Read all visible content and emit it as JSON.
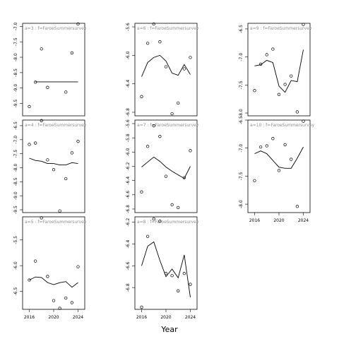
{
  "figure": {
    "xlabel": "Year"
  },
  "chart_data": [
    {
      "type": "scatter",
      "panel_label": "a=3 : f=FaroeSummersurvey",
      "ylim": [
        -9.9,
        -6.9
      ],
      "yticks": [
        -9.5,
        -9.0,
        -8.5,
        -8.0,
        -7.5,
        -7.0
      ],
      "ytick_labels": [
        "-9.5",
        "-9.0",
        "-8.5",
        "-8.0",
        "-7.5",
        "-7.0"
      ],
      "show_xaxis": false,
      "points": [
        [
          2016,
          -9.6
        ],
        [
          2017,
          -8.81
        ],
        [
          2018,
          -7.73
        ],
        [
          2019,
          -8.98
        ],
        [
          2022,
          -9.13
        ],
        [
          2023,
          -7.86
        ],
        [
          2024,
          -6.92
        ]
      ],
      "fit": [
        [
          2017,
          -8.8
        ],
        [
          2024,
          -8.8
        ]
      ]
    },
    {
      "type": "scatter",
      "panel_label": "a=6 : f=FaroeSummersurvey",
      "ylim": [
        -6.85,
        -5.55
      ],
      "yticks": [
        -6.8,
        -6.4,
        -6.0,
        -5.6
      ],
      "ytick_labels": [
        "-6.8",
        "-6.4",
        "-6.0",
        "-5.6"
      ],
      "show_xaxis": false,
      "points": [
        [
          2016,
          -6.58
        ],
        [
          2017,
          -5.83
        ],
        [
          2018,
          -5.56
        ],
        [
          2019,
          -5.81
        ],
        [
          2020,
          -6.16
        ],
        [
          2021,
          -6.82
        ],
        [
          2022,
          -6.67
        ],
        [
          2023,
          -6.19
        ],
        [
          2024,
          -6.03
        ]
      ],
      "fit": [
        [
          2016,
          -6.3
        ],
        [
          2017,
          -6.1
        ],
        [
          2018,
          -6.03
        ],
        [
          2019,
          -6.0
        ],
        [
          2020,
          -6.08
        ],
        [
          2021,
          -6.25
        ],
        [
          2022,
          -6.28
        ],
        [
          2023,
          -6.13
        ],
        [
          2024,
          -6.27
        ]
      ]
    },
    {
      "type": "scatter",
      "panel_label": "a=9 : f=FaroeSummersurvey",
      "ylim": [
        -8.05,
        -6.4
      ],
      "yticks": [
        -8.0,
        -7.5,
        -7.0,
        -6.5
      ],
      "ytick_labels": [
        "-8.0",
        "-7.5",
        "-7.0",
        "-6.5"
      ],
      "show_xaxis": false,
      "points": [
        [
          2016,
          -7.6
        ],
        [
          2017,
          -7.13
        ],
        [
          2018,
          -6.96
        ],
        [
          2019,
          -6.86
        ],
        [
          2020,
          -7.67
        ],
        [
          2021,
          -7.49
        ],
        [
          2022,
          -7.34
        ],
        [
          2023,
          -7.98
        ],
        [
          2024,
          -6.42
        ]
      ],
      "fit": [
        [
          2016,
          -7.16
        ],
        [
          2017,
          -7.14
        ],
        [
          2018,
          -7.06
        ],
        [
          2019,
          -7.1
        ],
        [
          2020,
          -7.52
        ],
        [
          2021,
          -7.63
        ],
        [
          2022,
          -7.42
        ],
        [
          2023,
          -7.44
        ],
        [
          2024,
          -6.87
        ]
      ]
    },
    {
      "type": "scatter",
      "panel_label": "a=4 : f=FaroeSummersurvey",
      "ylim": [
        -9.6,
        -6.3
      ],
      "yticks": [
        -9.5,
        -9.0,
        -8.5,
        -8.0,
        -7.5,
        -7.0,
        -6.5
      ],
      "ytick_labels": [
        "-9.5",
        "-9.0",
        "-8.5",
        "-8.0",
        "-7.5",
        "-7.0",
        "-6.5"
      ],
      "show_xaxis": false,
      "points": [
        [
          2016,
          -7.17
        ],
        [
          2017,
          -7.12
        ],
        [
          2018,
          -6.32
        ],
        [
          2019,
          -7.72
        ],
        [
          2020,
          -8.07
        ],
        [
          2021,
          -9.54
        ],
        [
          2022,
          -8.39
        ],
        [
          2023,
          -7.47
        ],
        [
          2024,
          -7.06
        ]
      ],
      "fit": [
        [
          2016,
          -7.66
        ],
        [
          2017,
          -7.74
        ],
        [
          2018,
          -7.77
        ],
        [
          2019,
          -7.85
        ],
        [
          2020,
          -7.85
        ],
        [
          2021,
          -7.9
        ],
        [
          2022,
          -7.9
        ],
        [
          2023,
          -7.82
        ],
        [
          2024,
          -7.85
        ]
      ]
    },
    {
      "type": "scatter",
      "panel_label": "a=7 : f=FaroeSummersurvey",
      "ylim": [
        -6.85,
        -5.55
      ],
      "yticks": [
        -6.8,
        -6.6,
        -6.4,
        -6.2,
        -6.0,
        -5.8,
        -5.6
      ],
      "ytick_labels": [
        "-6.8",
        "-6.6",
        "-6.4",
        "-6.2",
        "-6.0",
        "-5.8",
        "-5.6"
      ],
      "show_xaxis": false,
      "points": [
        [
          2016,
          -6.56
        ],
        [
          2017,
          -5.92
        ],
        [
          2018,
          -5.63
        ],
        [
          2019,
          -5.78
        ],
        [
          2020,
          -6.34
        ],
        [
          2021,
          -6.74
        ],
        [
          2022,
          -6.78
        ],
        [
          2023,
          -6.36
        ],
        [
          2024,
          -5.98
        ]
      ],
      "fit": [
        [
          2016,
          -6.21
        ],
        [
          2017,
          -6.14
        ],
        [
          2018,
          -6.07
        ],
        [
          2019,
          -6.13
        ],
        [
          2020,
          -6.21
        ],
        [
          2021,
          -6.27
        ],
        [
          2022,
          -6.32
        ],
        [
          2023,
          -6.37
        ],
        [
          2024,
          -6.2
        ]
      ]
    },
    {
      "type": "scatter",
      "panel_label": "a=10 : f=FaroeSummersurvey",
      "ylim": [
        -8.15,
        -6.5
      ],
      "yticks": [
        -8.0,
        -7.5,
        -7.0,
        -6.5
      ],
      "ytick_labels": [
        "-8.0",
        "-7.5",
        "-7.0",
        "-6.5"
      ],
      "show_xaxis": true,
      "points": [
        [
          2016,
          -7.58
        ],
        [
          2017,
          -6.98
        ],
        [
          2018,
          -6.96
        ],
        [
          2019,
          -6.83
        ],
        [
          2020,
          -7.4
        ],
        [
          2021,
          -6.94
        ],
        [
          2022,
          -7.2
        ],
        [
          2023,
          -8.04
        ],
        [
          2024,
          -6.52
        ]
      ],
      "fit": [
        [
          2016,
          -7.1
        ],
        [
          2017,
          -7.05
        ],
        [
          2018,
          -7.1
        ],
        [
          2019,
          -7.22
        ],
        [
          2020,
          -7.34
        ],
        [
          2021,
          -7.36
        ],
        [
          2022,
          -7.36
        ],
        [
          2023,
          -7.18
        ],
        [
          2024,
          -6.98
        ]
      ]
    },
    {
      "type": "scatter",
      "panel_label": "a=5 : f=FaroeSummersurvey",
      "ylim": [
        -6.85,
        -5.05
      ],
      "yticks": [
        -6.5,
        -6.0,
        -5.5
      ],
      "ytick_labels": [
        "-6.5",
        "-6.0",
        "-5.5"
      ],
      "show_xaxis": true,
      "points": [
        [
          2016,
          -6.28
        ],
        [
          2017,
          -5.91
        ],
        [
          2018,
          -5.07
        ],
        [
          2019,
          -6.21
        ],
        [
          2020,
          -6.68
        ],
        [
          2021,
          -6.83
        ],
        [
          2022,
          -6.63
        ],
        [
          2023,
          -6.72
        ],
        [
          2024,
          -6.02
        ]
      ],
      "fit": [
        [
          2016,
          -6.28
        ],
        [
          2017,
          -6.22
        ],
        [
          2018,
          -6.23
        ],
        [
          2019,
          -6.33
        ],
        [
          2020,
          -6.37
        ],
        [
          2021,
          -6.33
        ],
        [
          2022,
          -6.31
        ],
        [
          2023,
          -6.42
        ],
        [
          2024,
          -6.33
        ]
      ]
    },
    {
      "type": "scatter",
      "panel_label": "a=8 : f=FaroeSummersurvey",
      "ylim": [
        -7.0,
        -6.15
      ],
      "yticks": [
        -6.8,
        -6.6,
        -6.4,
        -6.2
      ],
      "ytick_labels": [
        "-6.8",
        "-6.6",
        "-6.4",
        "-6.2"
      ],
      "show_xaxis": true,
      "points": [
        [
          2016,
          -6.98
        ],
        [
          2017,
          -6.33
        ],
        [
          2018,
          -6.17
        ],
        [
          2019,
          -6.19
        ],
        [
          2020,
          -6.67
        ],
        [
          2021,
          -6.69
        ],
        [
          2022,
          -6.83
        ],
        [
          2023,
          -6.67
        ],
        [
          2024,
          -6.77
        ]
      ],
      "fit": [
        [
          2016,
          -6.6
        ],
        [
          2017,
          -6.42
        ],
        [
          2018,
          -6.38
        ],
        [
          2019,
          -6.55
        ],
        [
          2020,
          -6.7
        ],
        [
          2021,
          -6.63
        ],
        [
          2022,
          -6.71
        ],
        [
          2023,
          -6.5
        ],
        [
          2024,
          -6.89
        ]
      ]
    }
  ]
}
